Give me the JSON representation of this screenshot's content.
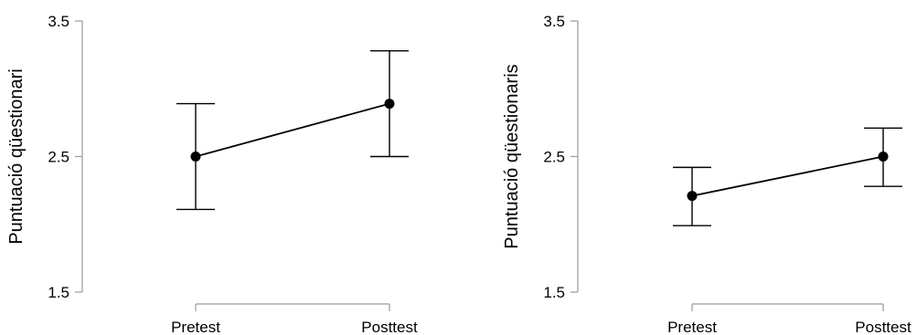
{
  "chart_data": [
    {
      "type": "line",
      "title": "",
      "xlabel": "",
      "ylabel": "Puntuació qüestionari",
      "categories": [
        "Pretest",
        "Posttest"
      ],
      "yticks": [
        "1.5",
        "2.5",
        "3.5"
      ],
      "ylim": [
        1.5,
        3.5
      ],
      "series": [
        {
          "values": [
            2.5,
            2.89
          ],
          "lower": [
            2.11,
            2.5
          ],
          "upper": [
            2.89,
            3.28
          ]
        }
      ],
      "grid": false
    },
    {
      "type": "line",
      "title": "",
      "xlabel": "",
      "ylabel": "Puntuació qüestionaris",
      "categories": [
        "Pretest",
        "Posttest"
      ],
      "yticks": [
        "1.5",
        "2.5",
        "3.5"
      ],
      "ylim": [
        1.5,
        3.5
      ],
      "series": [
        {
          "values": [
            2.21,
            2.5
          ],
          "lower": [
            1.99,
            2.28
          ],
          "upper": [
            2.42,
            2.71
          ]
        }
      ],
      "grid": false
    }
  ]
}
